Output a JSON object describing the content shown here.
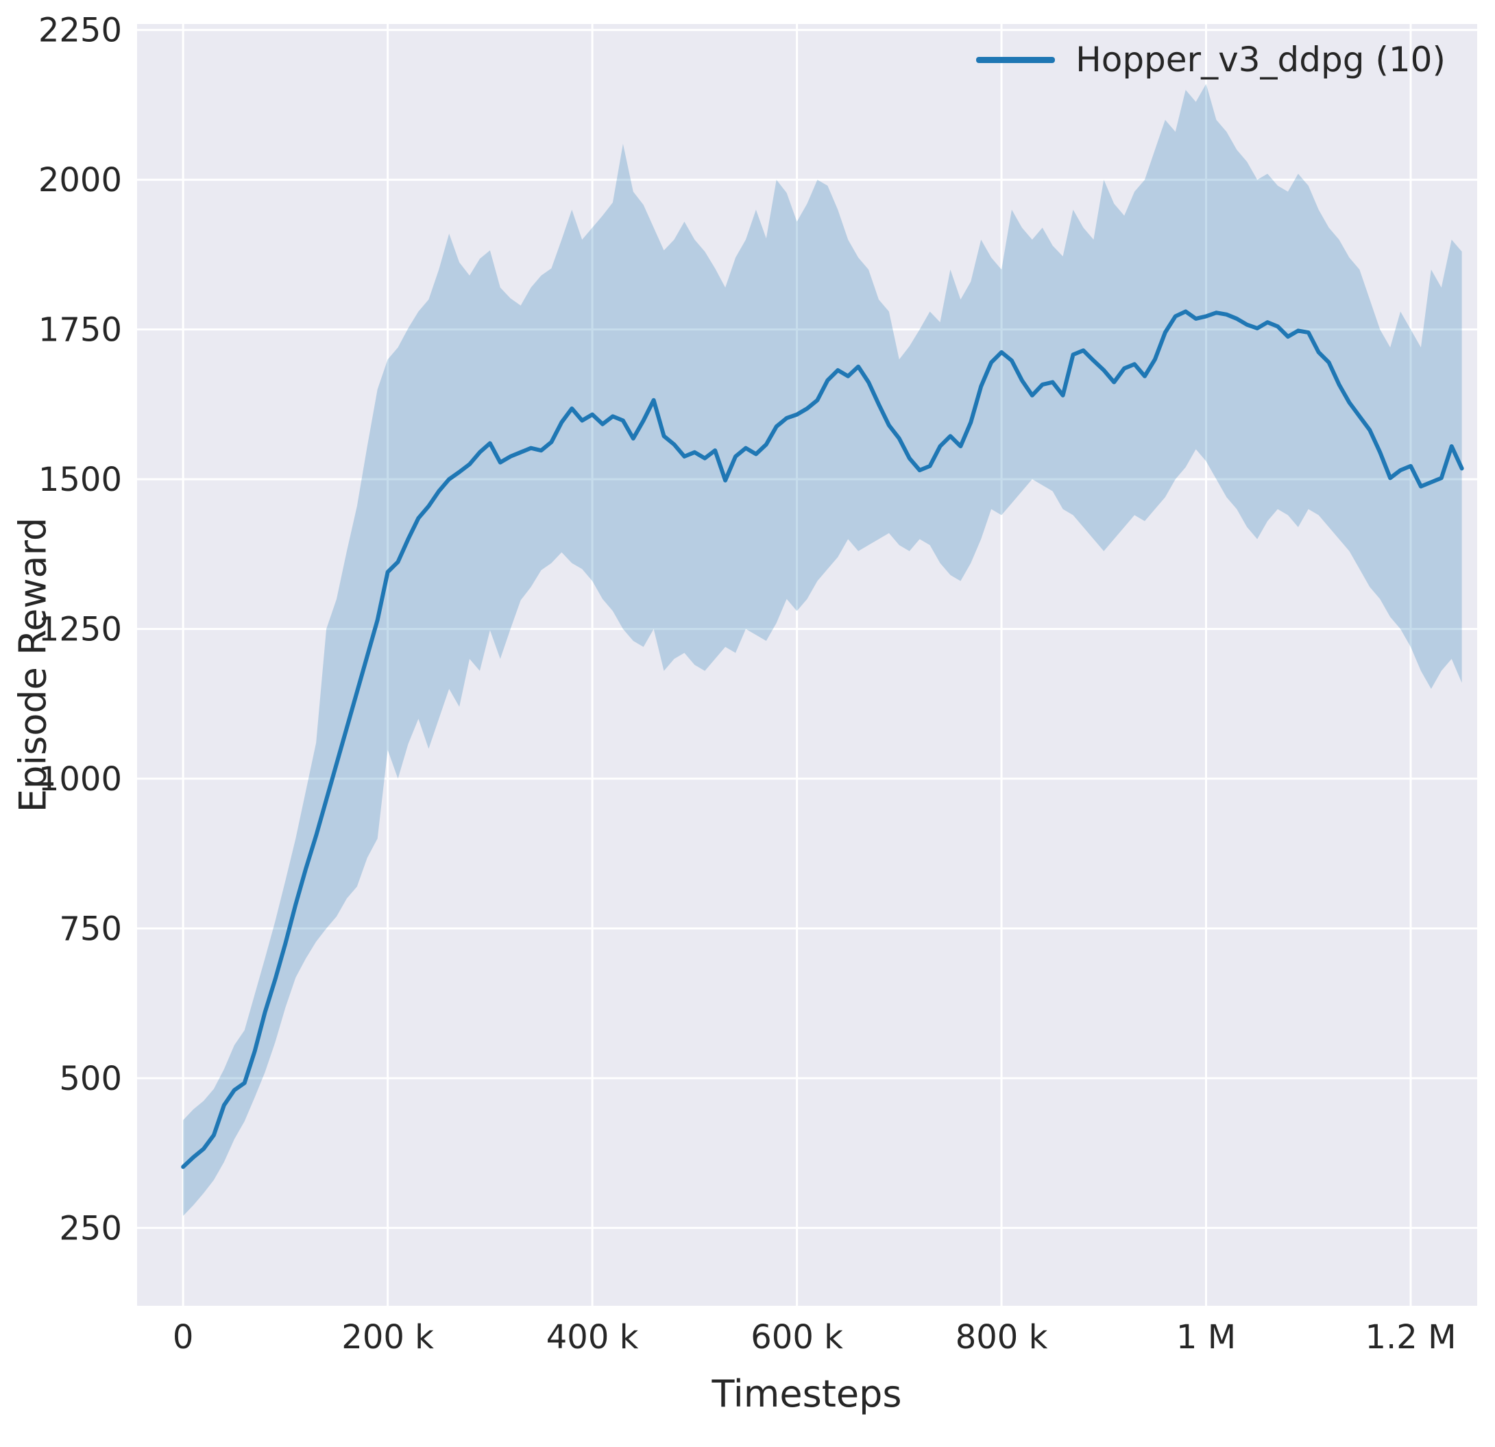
{
  "theme": {
    "background": "#ffffff",
    "axes_background": "#eaeaf2",
    "grid_color": "#ffffff",
    "text_color": "#262626",
    "line_color": "#1f77b4"
  },
  "chart_data": {
    "type": "line",
    "title": "",
    "xlabel": "Timesteps",
    "ylabel": "Episode Reward",
    "grid": true,
    "legend_position": "upper right",
    "x_units": "thousands of timesteps",
    "xlim": [
      -45,
      1265
    ],
    "ylim": [
      120,
      2260
    ],
    "x_ticks": [
      {
        "value": 0,
        "label": "0"
      },
      {
        "value": 200,
        "label": "200 k"
      },
      {
        "value": 400,
        "label": "400 k"
      },
      {
        "value": 600,
        "label": "600 k"
      },
      {
        "value": 800,
        "label": "800 k"
      },
      {
        "value": 1000,
        "label": "1 M"
      },
      {
        "value": 1200,
        "label": "1.2 M"
      }
    ],
    "y_ticks": [
      {
        "value": 250,
        "label": "250"
      },
      {
        "value": 500,
        "label": "500"
      },
      {
        "value": 750,
        "label": "750"
      },
      {
        "value": 1000,
        "label": "1000"
      },
      {
        "value": 1250,
        "label": "1250"
      },
      {
        "value": 1500,
        "label": "1500"
      },
      {
        "value": 1750,
        "label": "1750"
      },
      {
        "value": 2000,
        "label": "2000"
      },
      {
        "value": 2250,
        "label": "2250"
      }
    ],
    "series": [
      {
        "name": "Hopper_v3_ddpg (10)",
        "color": "#1f77b4",
        "band_opacity": 0.25,
        "line_width": 6,
        "x": [
          0,
          10,
          20,
          30,
          40,
          50,
          60,
          70,
          80,
          90,
          100,
          110,
          120,
          130,
          140,
          150,
          160,
          170,
          180,
          190,
          200,
          210,
          220,
          230,
          240,
          250,
          260,
          270,
          280,
          290,
          300,
          310,
          320,
          330,
          340,
          350,
          360,
          370,
          380,
          390,
          400,
          410,
          420,
          430,
          440,
          450,
          460,
          470,
          480,
          490,
          500,
          510,
          520,
          530,
          540,
          550,
          560,
          570,
          580,
          590,
          600,
          610,
          620,
          630,
          640,
          650,
          660,
          670,
          680,
          690,
          700,
          710,
          720,
          730,
          740,
          750,
          760,
          770,
          780,
          790,
          800,
          810,
          820,
          830,
          840,
          850,
          860,
          870,
          880,
          890,
          900,
          910,
          920,
          930,
          940,
          950,
          960,
          970,
          980,
          990,
          1000,
          1010,
          1020,
          1030,
          1040,
          1050,
          1060,
          1070,
          1080,
          1090,
          1100,
          1110,
          1120,
          1130,
          1140,
          1150,
          1160,
          1170,
          1180,
          1190,
          1200,
          1210,
          1220,
          1230,
          1240,
          1250
        ],
        "mean": [
          352,
          368,
          382,
          405,
          455,
          480,
          492,
          545,
          610,
          665,
          725,
          790,
          850,
          905,
          965,
          1025,
          1085,
          1145,
          1205,
          1265,
          1345,
          1362,
          1400,
          1435,
          1455,
          1480,
          1500,
          1512,
          1525,
          1545,
          1560,
          1528,
          1538,
          1545,
          1552,
          1548,
          1562,
          1595,
          1618,
          1598,
          1608,
          1592,
          1605,
          1598,
          1568,
          1598,
          1632,
          1572,
          1558,
          1538,
          1545,
          1535,
          1548,
          1498,
          1538,
          1552,
          1542,
          1558,
          1588,
          1602,
          1608,
          1618,
          1632,
          1665,
          1682,
          1672,
          1688,
          1662,
          1625,
          1590,
          1568,
          1535,
          1515,
          1522,
          1555,
          1572,
          1555,
          1595,
          1655,
          1695,
          1712,
          1698,
          1665,
          1640,
          1658,
          1662,
          1640,
          1708,
          1715,
          1698,
          1682,
          1662,
          1685,
          1692,
          1672,
          1700,
          1745,
          1772,
          1780,
          1768,
          1772,
          1778,
          1775,
          1768,
          1758,
          1752,
          1762,
          1755,
          1738,
          1748,
          1745,
          1712,
          1695,
          1658,
          1628,
          1605,
          1582,
          1545,
          1502,
          1515,
          1522,
          1488,
          1495,
          1502,
          1555,
          1518
        ],
        "upper": [
          430,
          448,
          462,
          482,
          515,
          555,
          580,
          640,
          700,
          762,
          830,
          900,
          980,
          1060,
          1250,
          1300,
          1380,
          1455,
          1555,
          1650,
          1700,
          1720,
          1752,
          1780,
          1800,
          1850,
          1910,
          1862,
          1840,
          1868,
          1882,
          1820,
          1802,
          1790,
          1820,
          1840,
          1852,
          1900,
          1950,
          1900,
          1920,
          1940,
          1962,
          2060,
          1980,
          1958,
          1920,
          1882,
          1900,
          1930,
          1900,
          1880,
          1852,
          1820,
          1870,
          1900,
          1950,
          1902,
          2000,
          1978,
          1930,
          1960,
          2000,
          1990,
          1950,
          1900,
          1870,
          1850,
          1800,
          1780,
          1700,
          1722,
          1750,
          1780,
          1762,
          1850,
          1800,
          1830,
          1900,
          1870,
          1850,
          1950,
          1920,
          1900,
          1920,
          1890,
          1872,
          1950,
          1920,
          1900,
          2000,
          1960,
          1940,
          1980,
          2000,
          2050,
          2100,
          2080,
          2150,
          2130,
          2160,
          2100,
          2080,
          2050,
          2030,
          2000,
          2010,
          1990,
          1980,
          2010,
          1990,
          1950,
          1920,
          1900,
          1870,
          1850,
          1800,
          1750,
          1720,
          1780,
          1750,
          1720,
          1850,
          1820,
          1900,
          1880
        ],
        "lower": [
          270,
          288,
          308,
          330,
          360,
          398,
          428,
          468,
          510,
          560,
          618,
          668,
          700,
          728,
          750,
          770,
          800,
          820,
          868,
          900,
          1048,
          1000,
          1058,
          1100,
          1050,
          1100,
          1150,
          1120,
          1200,
          1180,
          1248,
          1200,
          1250,
          1298,
          1320,
          1348,
          1360,
          1378,
          1360,
          1350,
          1330,
          1300,
          1280,
          1250,
          1230,
          1220,
          1250,
          1180,
          1200,
          1210,
          1190,
          1180,
          1200,
          1220,
          1210,
          1250,
          1240,
          1230,
          1260,
          1300,
          1280,
          1300,
          1330,
          1350,
          1370,
          1400,
          1380,
          1390,
          1400,
          1410,
          1390,
          1380,
          1400,
          1390,
          1360,
          1340,
          1330,
          1360,
          1400,
          1450,
          1440,
          1460,
          1480,
          1500,
          1490,
          1480,
          1450,
          1440,
          1420,
          1400,
          1380,
          1400,
          1420,
          1440,
          1430,
          1450,
          1470,
          1500,
          1520,
          1550,
          1530,
          1500,
          1470,
          1450,
          1420,
          1400,
          1430,
          1450,
          1440,
          1420,
          1450,
          1440,
          1420,
          1400,
          1380,
          1350,
          1320,
          1300,
          1270,
          1250,
          1220,
          1180,
          1150,
          1180,
          1200,
          1160
        ]
      }
    ]
  }
}
